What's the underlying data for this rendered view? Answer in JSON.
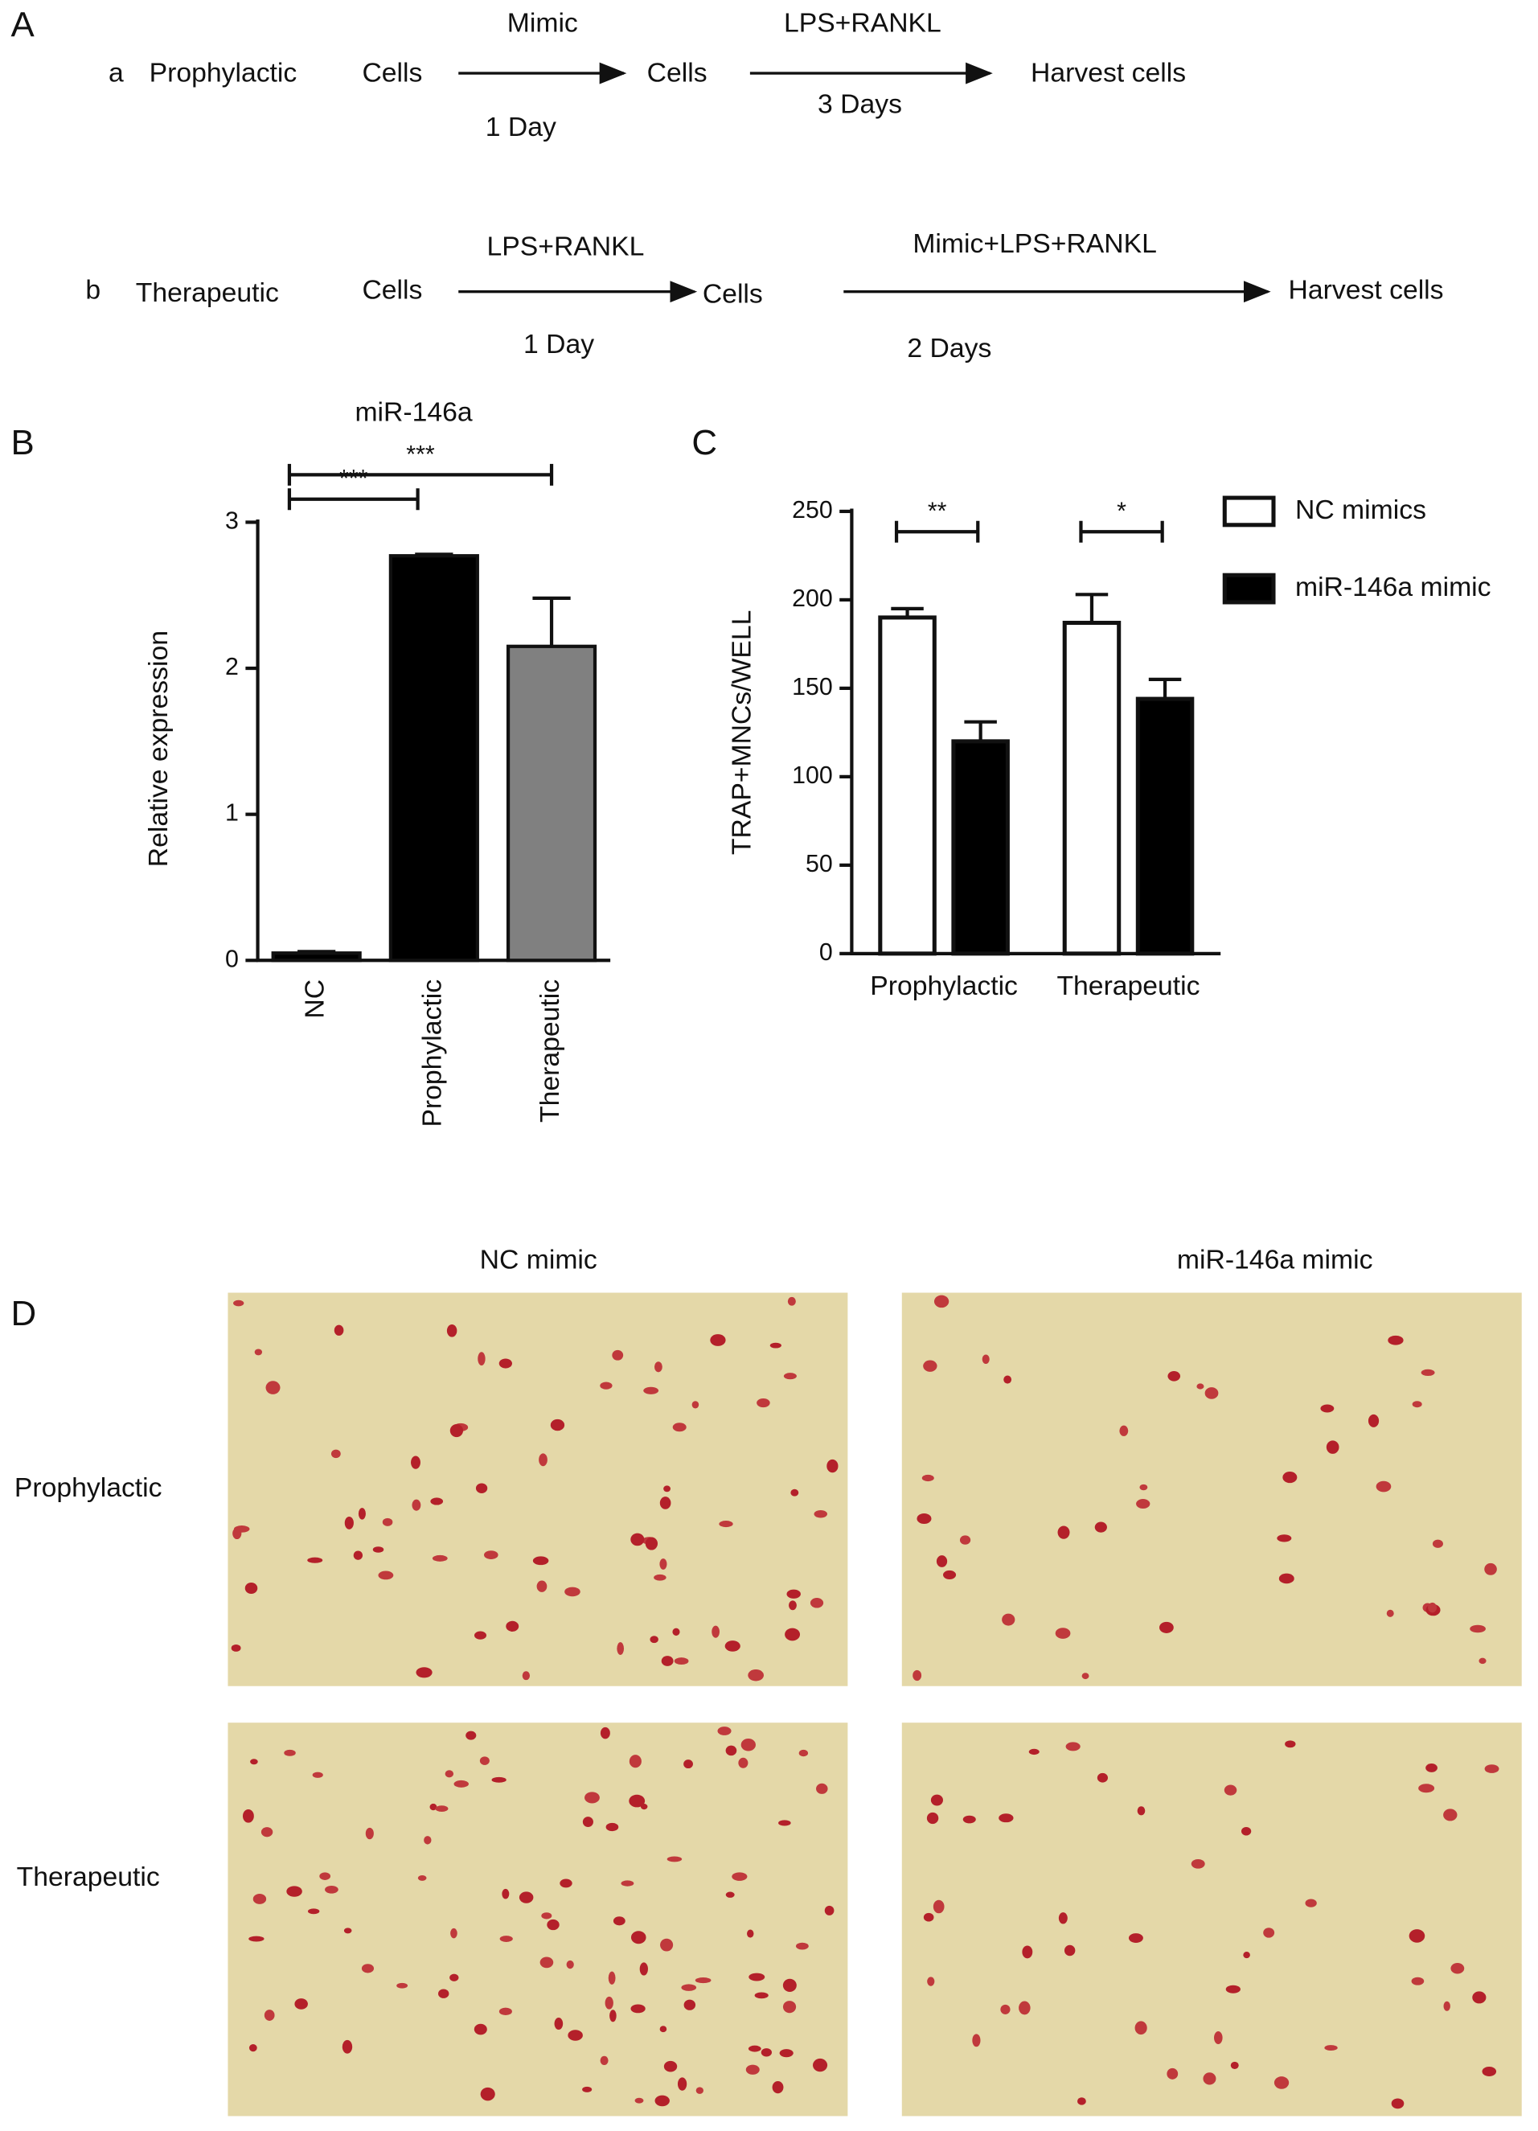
{
  "panel_a": {
    "label": "A",
    "rows": [
      {
        "label": "a",
        "name": "Prophylactic",
        "start": "Cells",
        "step1_top": "Mimic",
        "step1_bottom": "1 Day",
        "middle": "Cells",
        "step2_top": "LPS+RANKL",
        "step2_bottom": "3 Days",
        "end": "Harvest cells"
      },
      {
        "label": "b",
        "name": "Therapeutic",
        "start": "Cells",
        "step1_top": "LPS+RANKL",
        "step1_bottom": "1 Day",
        "middle": "Cells",
        "step2_top": "Mimic+LPS+RANKL",
        "step2_bottom": "2 Days",
        "end": "Harvest cells"
      }
    ]
  },
  "chart_data": [
    {
      "type": "bar",
      "panel": "B",
      "title": "miR-146a",
      "y_label": "Relative expression",
      "categories": [
        "NC",
        "Prophylactic",
        "Therapeutic"
      ],
      "values": [
        0.05,
        2.77,
        2.15
      ],
      "errors": [
        0.01,
        0.01,
        0.33
      ],
      "colors": [
        "#000000",
        "#000000",
        "#808080"
      ],
      "ylim": [
        0,
        3
      ],
      "yticks": [
        0,
        1,
        2,
        3
      ],
      "annotations": [
        "***",
        "***"
      ]
    },
    {
      "type": "grouped-bar",
      "panel": "C",
      "y_label": "TRAP+MNCs/WELL",
      "categories": [
        "Prophylactic",
        "Therapeutic"
      ],
      "series": [
        {
          "name": "NC mimics",
          "color": "#ffffff",
          "values": [
            190,
            187
          ],
          "errors": [
            5,
            16
          ]
        },
        {
          "name": "miR-146a mimic",
          "color": "#000000",
          "values": [
            120,
            144
          ],
          "errors": [
            11,
            11
          ]
        }
      ],
      "ylim": [
        0,
        250
      ],
      "yticks": [
        0,
        50,
        100,
        150,
        200,
        250
      ],
      "legend": "right",
      "annotations": [
        "**",
        "*"
      ]
    }
  ],
  "panel_d": {
    "label": "D",
    "columns": [
      "NC mimic",
      "miR-146a mimic"
    ],
    "rows": [
      "Prophylactic",
      "Therapeutic"
    ]
  }
}
